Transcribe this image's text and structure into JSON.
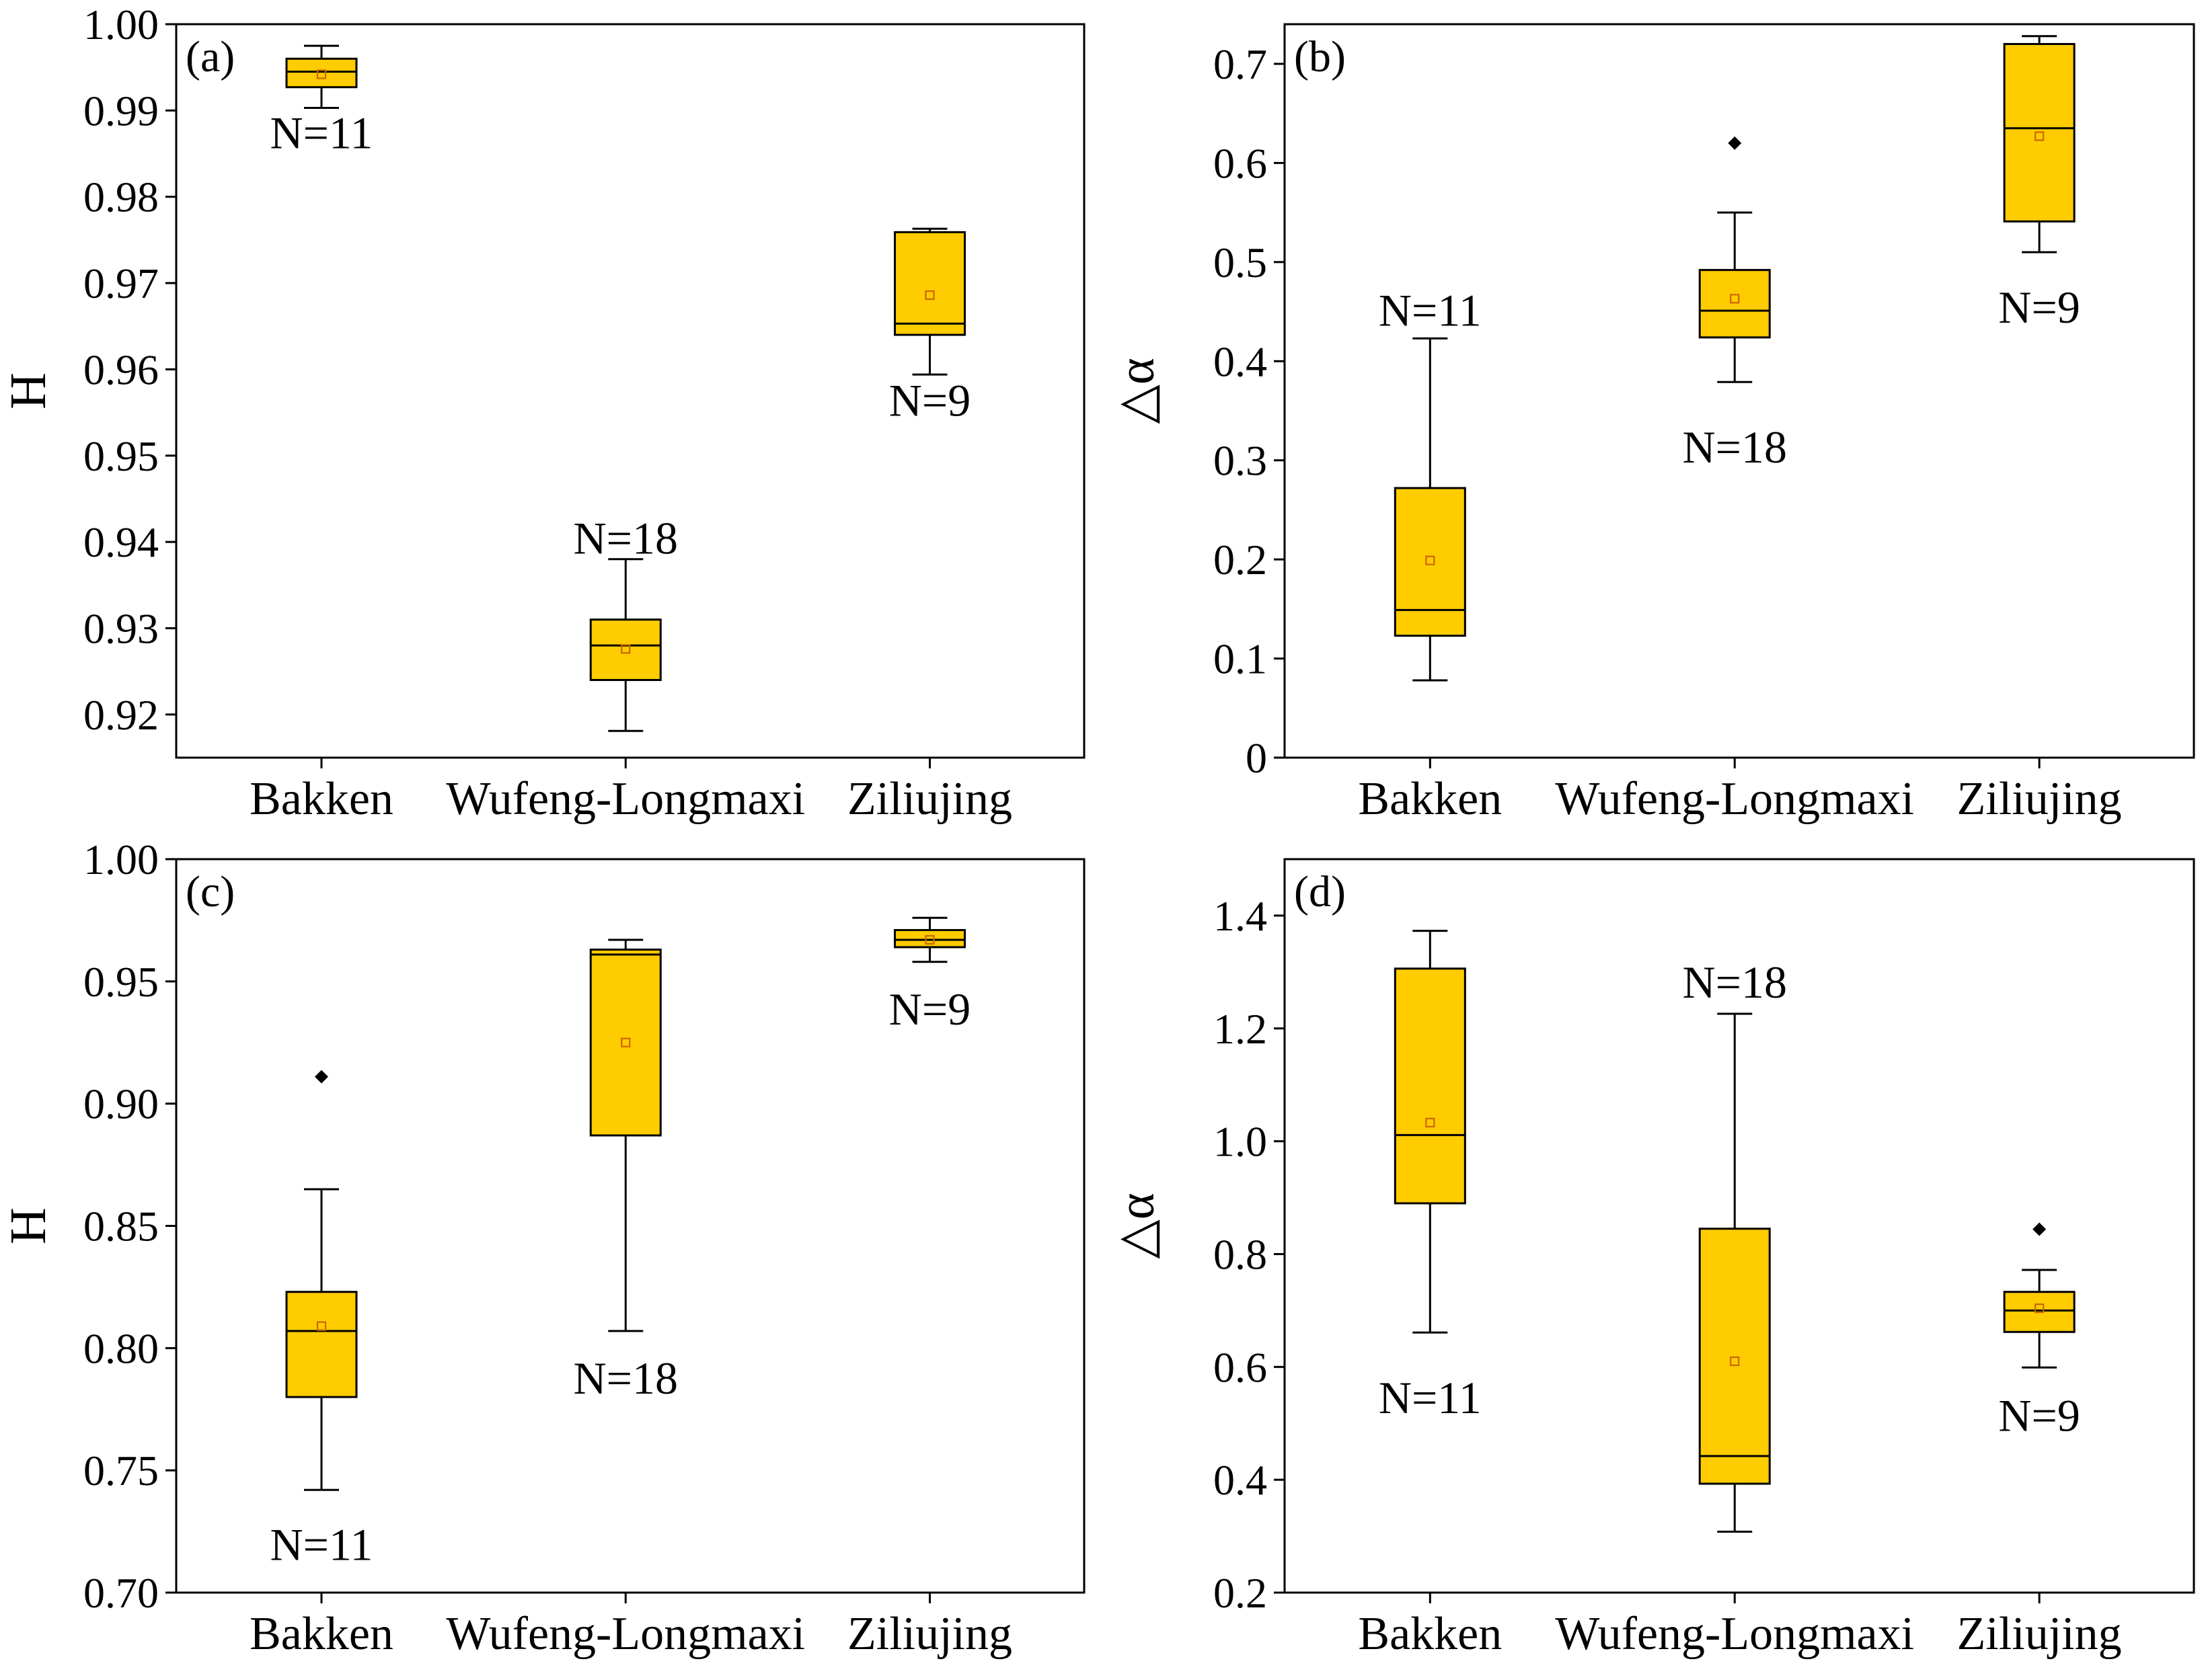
{
  "colors": {
    "box_fill": "#FFCC00",
    "mean_marker": "#CC6600",
    "outlier": "#000000",
    "axis": "#000000"
  },
  "chart_data": [
    {
      "type": "box",
      "panel_label": "(a)",
      "ylabel": "H",
      "ylim": [
        0.915,
        1.0
      ],
      "yticks": [
        0.92,
        0.93,
        0.94,
        0.95,
        0.96,
        0.97,
        0.98,
        0.99,
        1.0
      ],
      "ytick_labels": [
        "0.92",
        "0.93",
        "0.94",
        "0.95",
        "0.96",
        "0.97",
        "0.98",
        "0.99",
        "1.00"
      ],
      "categories": [
        "Bakken",
        "Wufeng-Longmaxi",
        "Ziliujing"
      ],
      "boxes": [
        {
          "category": "Bakken",
          "whisker_low": 0.9903,
          "q1": 0.9927,
          "median": 0.9945,
          "q3": 0.996,
          "whisker_high": 0.9975,
          "mean": 0.9942,
          "outliers": [],
          "n_label": "N=11",
          "n_label_value": 0.9875
        },
        {
          "category": "Wufeng-Longmaxi",
          "whisker_low": 0.9181,
          "q1": 0.924,
          "median": 0.928,
          "q3": 0.931,
          "whisker_high": 0.938,
          "mean": 0.9276,
          "outliers": [],
          "n_label": "N=18",
          "n_label_value": 0.9405
        },
        {
          "category": "Ziliujing",
          "whisker_low": 0.9594,
          "q1": 0.964,
          "median": 0.9653,
          "q3": 0.9759,
          "whisker_high": 0.9763,
          "mean": 0.9686,
          "outliers": [],
          "n_label": "N=9",
          "n_label_value": 0.9565
        }
      ]
    },
    {
      "type": "box",
      "panel_label": "(b)",
      "ylabel": "△α",
      "ylim": [
        0,
        0.74
      ],
      "yticks": [
        0,
        0.1,
        0.2,
        0.3,
        0.4,
        0.5,
        0.6,
        0.7
      ],
      "ytick_labels": [
        "0",
        "0.1",
        "0.2",
        "0.3",
        "0.4",
        "0.5",
        "0.6",
        "0.7"
      ],
      "categories": [
        "Bakken",
        "Wufeng-Longmaxi",
        "Ziliujing"
      ],
      "boxes": [
        {
          "category": "Bakken",
          "whisker_low": 0.078,
          "q1": 0.123,
          "median": 0.149,
          "q3": 0.272,
          "whisker_high": 0.423,
          "mean": 0.199,
          "outliers": [],
          "n_label": "N=11",
          "n_label_value": 0.452
        },
        {
          "category": "Wufeng-Longmaxi",
          "whisker_low": 0.379,
          "q1": 0.424,
          "median": 0.451,
          "q3": 0.492,
          "whisker_high": 0.55,
          "mean": 0.463,
          "outliers": [
            0.62
          ],
          "n_label": "N=18",
          "n_label_value": 0.314
        },
        {
          "category": "Ziliujing",
          "whisker_low": 0.51,
          "q1": 0.541,
          "median": 0.635,
          "q3": 0.72,
          "whisker_high": 0.728,
          "mean": 0.627,
          "outliers": [],
          "n_label": "N=9",
          "n_label_value": 0.455
        }
      ]
    },
    {
      "type": "box",
      "panel_label": "(c)",
      "ylabel": "H",
      "ylim": [
        0.7,
        1.0
      ],
      "yticks": [
        0.7,
        0.75,
        0.8,
        0.85,
        0.9,
        0.95,
        1.0
      ],
      "ytick_labels": [
        "0.70",
        "0.75",
        "0.80",
        "0.85",
        "0.90",
        "0.95",
        "1.00"
      ],
      "categories": [
        "Bakken",
        "Wufeng-Longmaxi",
        "Ziliujing"
      ],
      "boxes": [
        {
          "category": "Bakken",
          "whisker_low": 0.742,
          "q1": 0.78,
          "median": 0.807,
          "q3": 0.823,
          "whisker_high": 0.865,
          "mean": 0.809,
          "outliers": [
            0.911
          ],
          "n_label": "N=11",
          "n_label_value": 0.72
        },
        {
          "category": "Wufeng-Longmaxi",
          "whisker_low": 0.807,
          "q1": 0.887,
          "median": 0.961,
          "q3": 0.963,
          "whisker_high": 0.967,
          "mean": 0.925,
          "outliers": [],
          "n_label": "N=18",
          "n_label_value": 0.788
        },
        {
          "category": "Ziliujing",
          "whisker_low": 0.958,
          "q1": 0.964,
          "median": 0.967,
          "q3": 0.971,
          "whisker_high": 0.976,
          "mean": 0.967,
          "outliers": [],
          "n_label": "N=9",
          "n_label_value": 0.939
        }
      ]
    },
    {
      "type": "box",
      "panel_label": "(d)",
      "ylabel": "△α",
      "ylim": [
        0.2,
        1.5
      ],
      "yticks": [
        0.2,
        0.4,
        0.6,
        0.8,
        1.0,
        1.2,
        1.4
      ],
      "ytick_labels": [
        "0.2",
        "0.4",
        "0.6",
        "0.8",
        "1.0",
        "1.2",
        "1.4"
      ],
      "categories": [
        "Bakken",
        "Wufeng-Longmaxi",
        "Ziliujing"
      ],
      "boxes": [
        {
          "category": "Bakken",
          "whisker_low": 0.661,
          "q1": 0.89,
          "median": 1.011,
          "q3": 1.306,
          "whisker_high": 1.373,
          "mean": 1.033,
          "outliers": [],
          "n_label": "N=11",
          "n_label_value": 0.547
        },
        {
          "category": "Wufeng-Longmaxi",
          "whisker_low": 0.308,
          "q1": 0.393,
          "median": 0.442,
          "q3": 0.845,
          "whisker_high": 1.226,
          "mean": 0.61,
          "outliers": [],
          "n_label": "N=18",
          "n_label_value": 1.283
        },
        {
          "category": "Ziliujing",
          "whisker_low": 0.599,
          "q1": 0.662,
          "median": 0.7,
          "q3": 0.733,
          "whisker_high": 0.772,
          "mean": 0.704,
          "outliers": [
            0.844
          ],
          "n_label": "N=9",
          "n_label_value": 0.515
        }
      ]
    }
  ]
}
